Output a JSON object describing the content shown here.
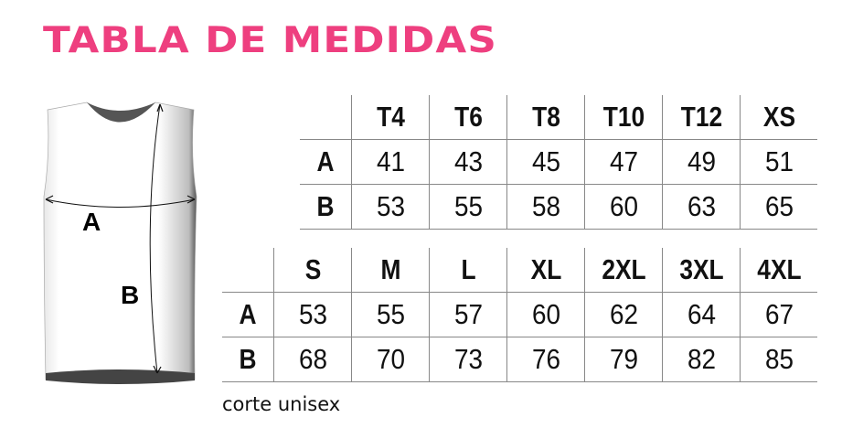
{
  "title": "TABLA DE MEDIDAS",
  "caption": "corte unisex",
  "colors": {
    "title": "#ee3f7f"
  },
  "diagram": {
    "label_a": "A",
    "label_b": "B",
    "icon": "sleeveless-shirt-icon"
  },
  "table1": {
    "headers": [
      "T4",
      "T6",
      "T8",
      "T10",
      "T12",
      "XS"
    ],
    "rows": [
      {
        "label": "A",
        "values": [
          "41",
          "43",
          "45",
          "47",
          "49",
          "51"
        ]
      },
      {
        "label": "B",
        "values": [
          "53",
          "55",
          "58",
          "60",
          "63",
          "65"
        ]
      }
    ]
  },
  "table2": {
    "headers": [
      "S",
      "M",
      "L",
      "XL",
      "2XL",
      "3XL",
      "4XL"
    ],
    "rows": [
      {
        "label": "A",
        "values": [
          "53",
          "55",
          "57",
          "60",
          "62",
          "64",
          "67"
        ]
      },
      {
        "label": "B",
        "values": [
          "68",
          "70",
          "73",
          "76",
          "79",
          "82",
          "85"
        ]
      }
    ]
  }
}
